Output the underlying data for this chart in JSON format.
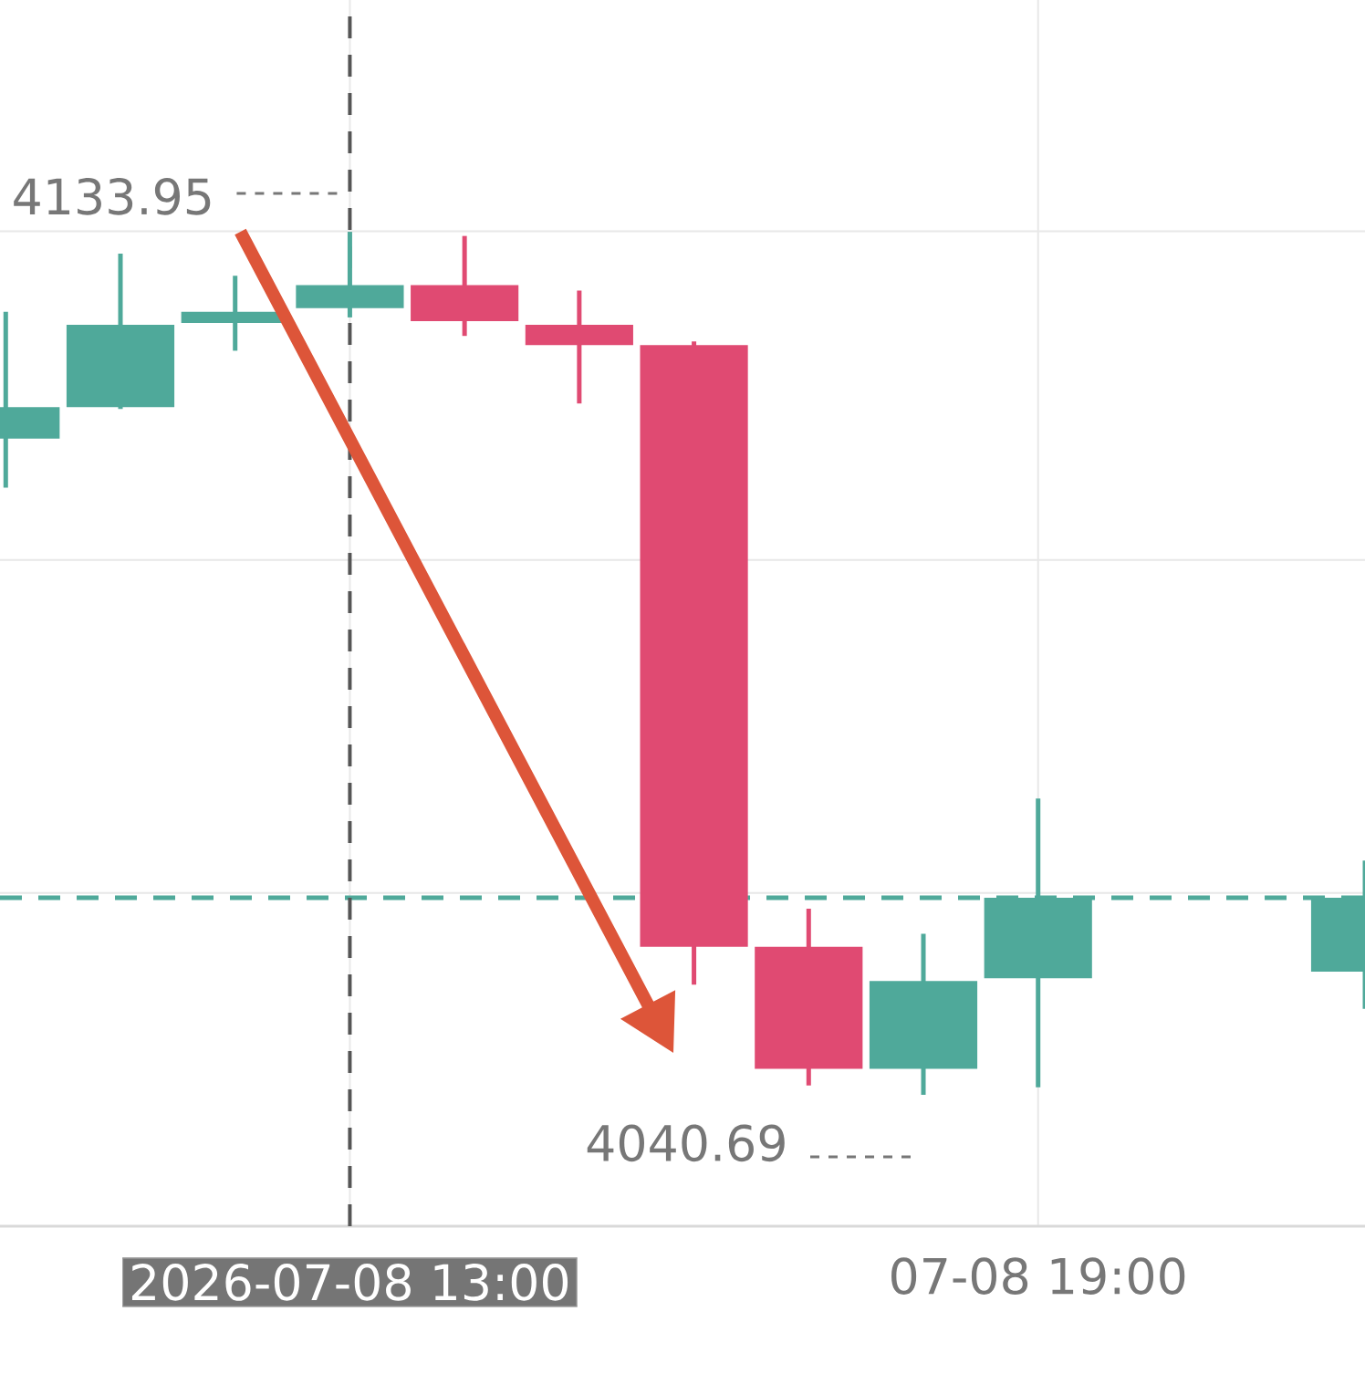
{
  "chart_data": {
    "type": "candlestick",
    "x": [
      "2026-07-08T10:00",
      "2026-07-08T11:00",
      "2026-07-08T12:00",
      "2026-07-08T13:00",
      "2026-07-08T14:00",
      "2026-07-08T15:00",
      "2026-07-08T16:00",
      "2026-07-08T17:00",
      "2026-07-08T18:00",
      "2026-07-08T19:00",
      "2026-07-08T21:51"
    ],
    "ohlc": [
      [
        4111.6,
        4125.3,
        4106.3,
        4115.0
      ],
      [
        4115.0,
        4131.6,
        4114.8,
        4123.9
      ],
      [
        4124.1,
        4129.2,
        4121.1,
        4125.3
      ],
      [
        4125.7,
        4133.95,
        4124.7,
        4128.2
      ],
      [
        4128.2,
        4133.5,
        4122.7,
        4124.3
      ],
      [
        4123.9,
        4127.6,
        4115.4,
        4121.7
      ],
      [
        4121.7,
        4122.1,
        4052.6,
        4056.7
      ],
      [
        4056.7,
        4060.8,
        4041.7,
        4043.5
      ],
      [
        4043.5,
        4058.1,
        4040.69,
        4053.0
      ],
      [
        4053.3,
        4072.7,
        4041.5,
        4062.0
      ],
      [
        4054.0,
        4066.0,
        4050.0,
        4062.0
      ]
    ],
    "colors": [
      "#4fa99a",
      "#4fa99a",
      "#4fa99a",
      "#4fa99a",
      "#e04a72",
      "#e04a72",
      "#e04a72",
      "#e04a72",
      "#4fa99a",
      "#4fa99a",
      "#4fa99a"
    ],
    "xlim": [
      "2026-07-08T09:57",
      "2026-07-08T21:51"
    ],
    "xticks": [
      {
        "value": "2026-07-08T13:00",
        "label": "2026-07-08 13:00"
      },
      {
        "value": "2026-07-08T19:00",
        "label": "07-08 19:00"
      }
    ],
    "ylim": [
      4026.5,
      4159
    ],
    "yticks": [
      {
        "value": 4062.5,
        "label": null
      },
      {
        "value": 4098.5,
        "label": null
      },
      {
        "value": 4134,
        "label": null
      }
    ],
    "tick_labels": "x",
    "grid": true,
    "ref_lines": [
      {
        "axis": "y",
        "value": 4062.0,
        "color": "#4fa99a",
        "line_style": "dashed"
      },
      {
        "axis": "x",
        "value": "2026-07-08T13:00",
        "color": "#555555",
        "line_style": "dashed"
      }
    ],
    "annotations": [
      {
        "text": "4133.95",
        "x": "2026-07-08T13:00",
        "y": 4133.95
      },
      {
        "text": "4040.69",
        "x": "2026-07-08T18:00",
        "y": 4040.69
      }
    ]
  }
}
